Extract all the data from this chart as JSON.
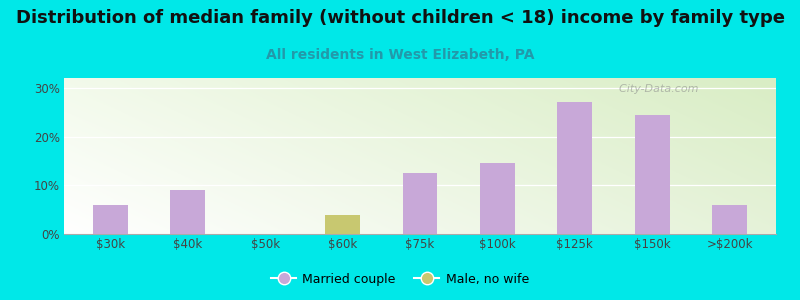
{
  "title": "Distribution of median family (without children < 18) income by family type",
  "subtitle": "All residents in West Elizabeth, PA",
  "categories": [
    "$30k",
    "$40k",
    "$50k",
    "$60k",
    "$75k",
    "$100k",
    "$125k",
    "$150k",
    ">$200k"
  ],
  "married_couple": [
    6.0,
    9.0,
    0.0,
    0.0,
    12.5,
    14.5,
    27.0,
    24.5,
    6.0
  ],
  "male_no_wife": [
    0.0,
    0.0,
    0.0,
    4.0,
    0.0,
    0.0,
    0.0,
    0.0,
    0.0
  ],
  "bar_color_married": "#c8a8d8",
  "bar_color_male": "#c8c870",
  "background_color": "#00e8e8",
  "ylim": [
    0,
    32
  ],
  "yticks": [
    0,
    10,
    20,
    30
  ],
  "ytick_labels": [
    "0%",
    "10%",
    "20%",
    "30%"
  ],
  "title_fontsize": 13,
  "subtitle_fontsize": 10,
  "subtitle_color": "#2299aa",
  "bar_width": 0.45,
  "watermark": "  City-Data.com"
}
